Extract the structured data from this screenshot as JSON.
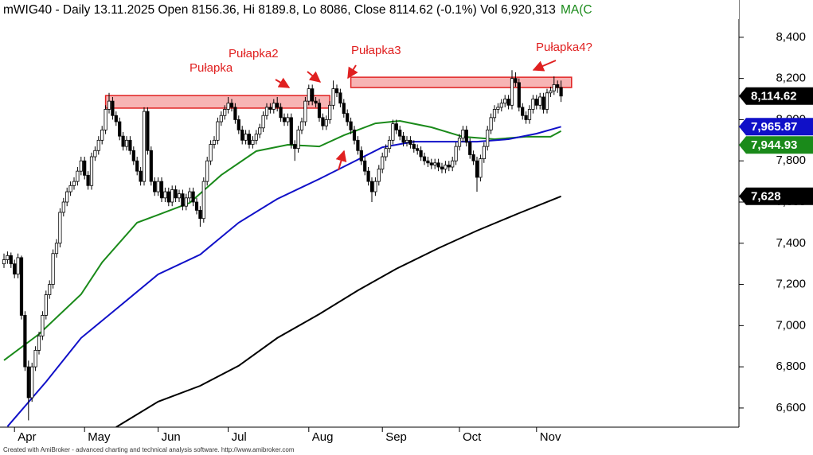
{
  "chart_data": {
    "type": "candlestick",
    "title": "mWIG40 - Daily 13.11.2025 Open 8156.36, Hi 8189.8, Lo 8086, Close 8114.62 (-0.1%) Vol 6,920,313",
    "title_extra": "MA(C",
    "footer": "Created with AmiBroker - advanced charting and technical analysis software. http://www.amibroker.com",
    "ylim": [
      6507,
      8581
    ],
    "yticks": [
      {
        "value": 6600,
        "label": "6,600"
      },
      {
        "value": 6800,
        "label": "6,800"
      },
      {
        "value": 7000,
        "label": "7,000"
      },
      {
        "value": 7200,
        "label": "7,200"
      },
      {
        "value": 7400,
        "label": "7,400"
      },
      {
        "value": 7600,
        "label": "7,600"
      },
      {
        "value": 7800,
        "label": "7,800"
      },
      {
        "value": 8000,
        "label": "8,000"
      },
      {
        "value": 8200,
        "label": "8,200"
      },
      {
        "value": 8400,
        "label": "8,400"
      }
    ],
    "categories": [
      null,
      null,
      null,
      "Apr",
      null,
      null,
      null,
      null,
      null,
      null,
      null,
      null,
      null,
      null,
      null,
      null,
      null,
      null,
      null,
      null,
      null,
      null,
      null,
      "May",
      null,
      null,
      null,
      null,
      null,
      null,
      null,
      null,
      null,
      null,
      null,
      null,
      null,
      null,
      null,
      null,
      null,
      null,
      null,
      null,
      "Jun",
      null,
      null,
      null,
      null,
      null,
      null,
      null,
      null,
      null,
      null,
      null,
      null,
      null,
      null,
      null,
      null,
      null,
      null,
      null,
      "Jul",
      null,
      null,
      null,
      null,
      null,
      null,
      null,
      null,
      null,
      null,
      null,
      null,
      null,
      null,
      null,
      null,
      null,
      null,
      null,
      null,
      null,
      null,
      "Aug",
      null,
      null,
      null,
      null,
      null,
      null,
      null,
      null,
      null,
      null,
      null,
      null,
      null,
      null,
      null,
      null,
      null,
      null,
      null,
      null,
      "Sep",
      null,
      null,
      null,
      null,
      null,
      null,
      null,
      null,
      null,
      null,
      null,
      null,
      null,
      null,
      null,
      null,
      null,
      null,
      null,
      null,
      null,
      "Oct",
      null,
      null,
      null,
      null,
      null,
      null,
      null,
      null,
      null,
      null,
      null,
      null,
      null,
      null,
      null,
      null,
      null,
      null,
      null,
      null,
      null,
      "Nov",
      null,
      null,
      null,
      null,
      null,
      null,
      null
    ],
    "ohlc": [
      [
        7300,
        7350,
        7280,
        7320
      ],
      [
        7320,
        7360,
        7300,
        7340
      ],
      [
        7340,
        7355,
        7280,
        7300
      ],
      [
        7300,
        7320,
        7230,
        7250
      ],
      [
        7250,
        7350,
        7230,
        7330
      ],
      [
        7330,
        7340,
        7030,
        7050
      ],
      [
        7050,
        7070,
        6780,
        6800
      ],
      [
        6800,
        6830,
        6540,
        6650
      ],
      [
        6650,
        6820,
        6630,
        6800
      ],
      [
        6800,
        6900,
        6780,
        6880
      ],
      [
        6880,
        6970,
        6860,
        6950
      ],
      [
        6950,
        7070,
        6930,
        7050
      ],
      [
        7050,
        7170,
        7030,
        7150
      ],
      [
        7150,
        7220,
        7130,
        7200
      ],
      [
        7200,
        7370,
        7180,
        7350
      ],
      [
        7350,
        7420,
        7330,
        7400
      ],
      [
        7400,
        7570,
        7380,
        7550
      ],
      [
        7550,
        7620,
        7530,
        7600
      ],
      [
        7600,
        7670,
        7580,
        7650
      ],
      [
        7650,
        7700,
        7630,
        7680
      ],
      [
        7680,
        7720,
        7660,
        7700
      ],
      [
        7700,
        7770,
        7680,
        7750
      ],
      [
        7750,
        7820,
        7730,
        7800
      ],
      [
        7800,
        7820,
        7710,
        7730
      ],
      [
        7730,
        7750,
        7660,
        7680
      ],
      [
        7680,
        7840,
        7660,
        7820
      ],
      [
        7820,
        7870,
        7800,
        7850
      ],
      [
        7850,
        7920,
        7830,
        7900
      ],
      [
        7900,
        7970,
        7880,
        7950
      ],
      [
        7950,
        8070,
        7930,
        8050
      ],
      [
        8050,
        8130,
        8030,
        8090
      ],
      [
        8090,
        8110,
        8000,
        8020
      ],
      [
        8020,
        8040,
        7970,
        7990
      ],
      [
        7990,
        8010,
        7900,
        7920
      ],
      [
        7920,
        7940,
        7850,
        7870
      ],
      [
        7870,
        7920,
        7850,
        7900
      ],
      [
        7900,
        7920,
        7830,
        7850
      ],
      [
        7850,
        7870,
        7780,
        7800
      ],
      [
        7800,
        7820,
        7730,
        7750
      ],
      [
        7750,
        7770,
        7680,
        7700
      ],
      [
        7700,
        8060,
        7680,
        8040
      ],
      [
        8040,
        8060,
        7830,
        7850
      ],
      [
        7850,
        7870,
        7680,
        7700
      ],
      [
        7700,
        7720,
        7630,
        7650
      ],
      [
        7650,
        7720,
        7630,
        7700
      ],
      [
        7700,
        7720,
        7600,
        7620
      ],
      [
        7620,
        7670,
        7600,
        7650
      ],
      [
        7650,
        7670,
        7580,
        7600
      ],
      [
        7600,
        7680,
        7580,
        7660
      ],
      [
        7660,
        7680,
        7600,
        7620
      ],
      [
        7620,
        7660,
        7600,
        7640
      ],
      [
        7640,
        7660,
        7560,
        7580
      ],
      [
        7580,
        7640,
        7560,
        7620
      ],
      [
        7620,
        7670,
        7600,
        7650
      ],
      [
        7650,
        7670,
        7580,
        7600
      ],
      [
        7600,
        7620,
        7540,
        7560
      ],
      [
        7560,
        7580,
        7480,
        7520
      ],
      [
        7520,
        7720,
        7500,
        7700
      ],
      [
        7700,
        7820,
        7680,
        7800
      ],
      [
        7800,
        7900,
        7780,
        7880
      ],
      [
        7880,
        7920,
        7860,
        7900
      ],
      [
        7900,
        8010,
        7880,
        7990
      ],
      [
        7990,
        8040,
        7970,
        8020
      ],
      [
        8020,
        8070,
        8000,
        8050
      ],
      [
        8050,
        8110,
        8030,
        8080
      ],
      [
        8080,
        8100,
        8040,
        8060
      ],
      [
        8060,
        8080,
        7980,
        8000
      ],
      [
        8000,
        8020,
        7930,
        7950
      ],
      [
        7950,
        7970,
        7880,
        7900
      ],
      [
        7900,
        7950,
        7880,
        7930
      ],
      [
        7930,
        7950,
        7860,
        7880
      ],
      [
        7880,
        7920,
        7860,
        7900
      ],
      [
        7900,
        7950,
        7880,
        7930
      ],
      [
        7930,
        7980,
        7910,
        7960
      ],
      [
        7960,
        8040,
        7940,
        8020
      ],
      [
        8020,
        8080,
        8000,
        8060
      ],
      [
        8060,
        8080,
        8030,
        8050
      ],
      [
        8050,
        8100,
        8030,
        8080
      ],
      [
        8080,
        8110,
        8040,
        8060
      ],
      [
        8060,
        8080,
        7990,
        8010
      ],
      [
        8010,
        8030,
        7970,
        7990
      ],
      [
        7990,
        8030,
        7970,
        8010
      ],
      [
        8010,
        8030,
        7860,
        7880
      ],
      [
        7880,
        7900,
        7800,
        7860
      ],
      [
        7860,
        7970,
        7840,
        7950
      ],
      [
        7950,
        8010,
        7930,
        7990
      ],
      [
        7990,
        8110,
        7970,
        8090
      ],
      [
        8090,
        8170,
        8070,
        8150
      ],
      [
        8150,
        8170,
        8070,
        8090
      ],
      [
        8090,
        8110,
        8060,
        8080
      ],
      [
        8080,
        8100,
        7990,
        8010
      ],
      [
        8010,
        8030,
        7950,
        7970
      ],
      [
        7970,
        8020,
        7950,
        8000
      ],
      [
        8000,
        8090,
        7980,
        8070
      ],
      [
        8070,
        8190,
        8050,
        8150
      ],
      [
        8150,
        8170,
        8110,
        8130
      ],
      [
        8130,
        8150,
        8060,
        8080
      ],
      [
        8080,
        8100,
        8010,
        8030
      ],
      [
        8030,
        8050,
        7970,
        7990
      ],
      [
        7990,
        8010,
        7930,
        7950
      ],
      [
        7950,
        7970,
        7880,
        7900
      ],
      [
        7900,
        7920,
        7830,
        7850
      ],
      [
        7850,
        7870,
        7780,
        7800
      ],
      [
        7800,
        7820,
        7730,
        7750
      ],
      [
        7750,
        7770,
        7680,
        7700
      ],
      [
        7700,
        7720,
        7600,
        7650
      ],
      [
        7650,
        7720,
        7630,
        7700
      ],
      [
        7700,
        7780,
        7680,
        7760
      ],
      [
        7760,
        7840,
        7740,
        7820
      ],
      [
        7820,
        7880,
        7800,
        7860
      ],
      [
        7860,
        7920,
        7840,
        7900
      ],
      [
        7900,
        8000,
        7880,
        7980
      ],
      [
        7980,
        8000,
        7930,
        7950
      ],
      [
        7950,
        7970,
        7900,
        7920
      ],
      [
        7920,
        7940,
        7870,
        7890
      ],
      [
        7890,
        7920,
        7870,
        7900
      ],
      [
        7900,
        7920,
        7860,
        7880
      ],
      [
        7880,
        7900,
        7840,
        7860
      ],
      [
        7860,
        7880,
        7830,
        7850
      ],
      [
        7850,
        7870,
        7800,
        7820
      ],
      [
        7820,
        7840,
        7780,
        7800
      ],
      [
        7800,
        7820,
        7770,
        7790
      ],
      [
        7790,
        7810,
        7760,
        7780
      ],
      [
        7780,
        7810,
        7760,
        7790
      ],
      [
        7790,
        7810,
        7750,
        7770
      ],
      [
        7770,
        7790,
        7740,
        7760
      ],
      [
        7760,
        7800,
        7740,
        7780
      ],
      [
        7780,
        7800,
        7750,
        7770
      ],
      [
        7770,
        7820,
        7750,
        7800
      ],
      [
        7800,
        7890,
        7780,
        7870
      ],
      [
        7870,
        7930,
        7850,
        7910
      ],
      [
        7910,
        7970,
        7890,
        7950
      ],
      [
        7950,
        7970,
        7870,
        7890
      ],
      [
        7890,
        7910,
        7810,
        7830
      ],
      [
        7830,
        7850,
        7780,
        7800
      ],
      [
        7800,
        7820,
        7650,
        7720
      ],
      [
        7720,
        7830,
        7700,
        7810
      ],
      [
        7810,
        7890,
        7790,
        7870
      ],
      [
        7870,
        7970,
        7850,
        7950
      ],
      [
        7950,
        8030,
        7930,
        8010
      ],
      [
        8010,
        8070,
        7990,
        8050
      ],
      [
        8050,
        8080,
        8030,
        8060
      ],
      [
        8060,
        8100,
        8040,
        8080
      ],
      [
        8080,
        8120,
        8060,
        8100
      ],
      [
        8100,
        8120,
        8050,
        8070
      ],
      [
        8070,
        8240,
        8050,
        8200
      ],
      [
        8200,
        8230,
        8160,
        8180
      ],
      [
        8180,
        8200,
        8040,
        8060
      ],
      [
        8060,
        8080,
        8000,
        8020
      ],
      [
        8020,
        8040,
        7980,
        8000
      ],
      [
        8000,
        8070,
        7980,
        8050
      ],
      [
        8050,
        8120,
        8030,
        8100
      ],
      [
        8100,
        8120,
        8050,
        8070
      ],
      [
        8070,
        8130,
        8050,
        8110
      ],
      [
        8110,
        8130,
        8030,
        8050
      ],
      [
        8050,
        8150,
        8030,
        8130
      ],
      [
        8130,
        8160,
        8110,
        8140
      ],
      [
        8140,
        8210,
        8120,
        8170
      ],
      [
        8170,
        8190,
        8130,
        8156
      ],
      [
        8156.36,
        8189.8,
        8086,
        8114.62
      ]
    ],
    "lines": [
      {
        "color": "#1a8a1a",
        "x": [
          0,
          10,
          22,
          28,
          38,
          44,
          53,
          62,
          72,
          81,
          90,
          97,
          106,
          113,
          122,
          131,
          140,
          149,
          156,
          159
        ],
        "values": [
          6832,
          6959,
          7152,
          7307,
          7500,
          7538,
          7596,
          7731,
          7847,
          7878,
          7870,
          7924,
          7982,
          7994,
          7963,
          7917,
          7905,
          7917,
          7917,
          7944.93
        ]
      },
      {
        "color": "#1010c8",
        "x": [
          1,
          12,
          22,
          33,
          44,
          56,
          67,
          78,
          90,
          99,
          108,
          117,
          126,
          135,
          144,
          152,
          159
        ],
        "values": [
          6510,
          6727,
          6940,
          7094,
          7249,
          7345,
          7500,
          7615,
          7712,
          7789,
          7866,
          7893,
          7893,
          7893,
          7905,
          7932,
          7965.87
        ]
      },
      {
        "color": "#000000",
        "x": [
          32,
          44,
          56,
          67,
          78,
          90,
          101,
          112,
          124,
          135,
          147,
          159
        ],
        "values": [
          6507,
          6631,
          6708,
          6805,
          6940,
          7056,
          7171,
          7276,
          7376,
          7461,
          7546,
          7628
        ]
      }
    ],
    "last_labels": [
      {
        "value": 8114.62,
        "label": "8,114.62",
        "color": "#000000"
      },
      {
        "value": 7965.87,
        "label": "7,965.87",
        "color": "#1010c8"
      },
      {
        "value": 7944.93,
        "label": "7,944.93",
        "color": "#1a8a1a"
      },
      {
        "value": 7628,
        "label": "7,628",
        "color": "#000000"
      }
    ],
    "zones": [
      {
        "x": [
          29,
          93
        ],
        "y": [
          8056,
          8117
        ]
      },
      {
        "x": [
          99,
          162
        ],
        "y": [
          8156,
          8206
        ]
      }
    ],
    "annotations": [
      "Pułapka",
      "Pułapka2",
      "Pułapka3",
      "Pułapka4?"
    ]
  }
}
